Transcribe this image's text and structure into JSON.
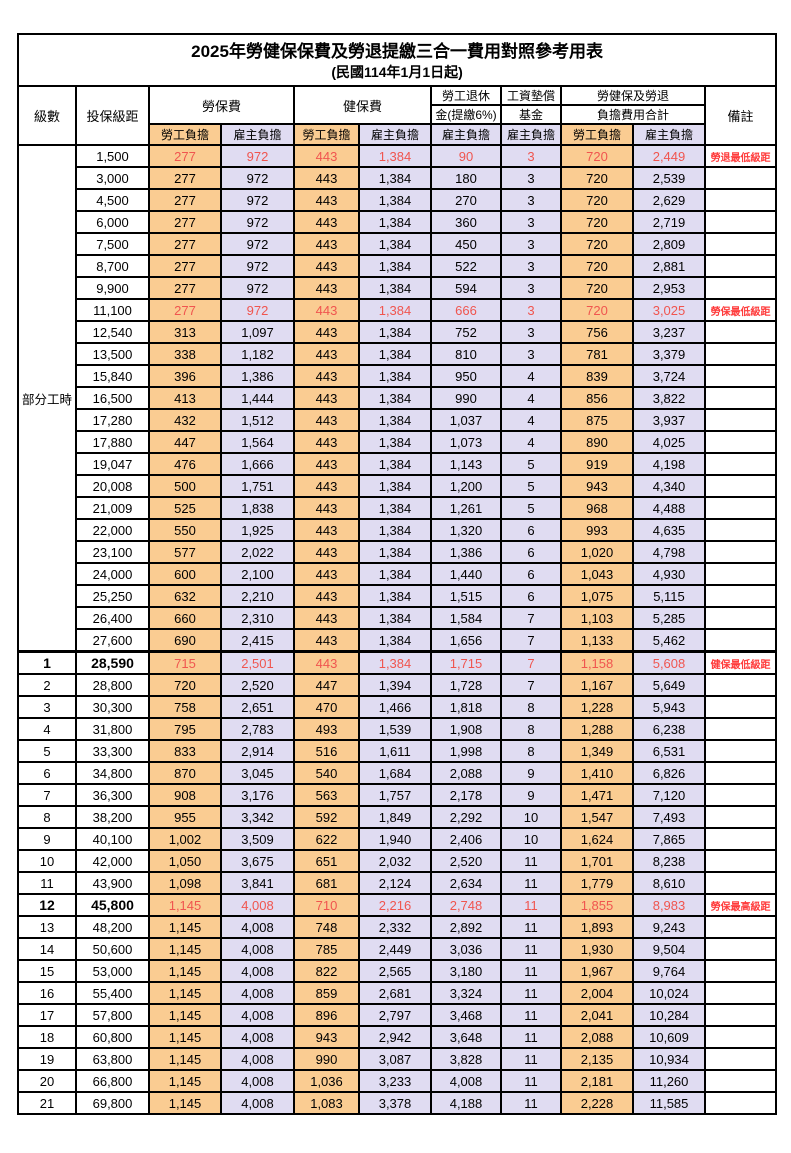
{
  "title": "2025年勞健保保費及勞退提繳三合一費用對照參考用表",
  "subtitle": "(民國114年1月1日起)",
  "colors": {
    "employee_bg": "#FACC92",
    "employer_bg": "#E0DCF2",
    "highlight_value_red": "#F0554F",
    "remark_red": "#FF3B3B",
    "border": "#000000"
  },
  "header": {
    "level": "級數",
    "bracket": "投保級距",
    "labor_fee": "勞保費",
    "health_fee": "健保費",
    "pension_line1": "勞工退休",
    "pension_line2": "金(提繳6%)",
    "wage_fund_line1": "工資墊償",
    "wage_fund_line2": "基金",
    "total_line1": "勞健保及勞退",
    "total_line2": "負擔費用合計",
    "remark": "備註",
    "employee_share": "勞工負擔",
    "employer_share": "雇主負擔"
  },
  "group": {
    "label": "部分工時",
    "rowspan": 23
  },
  "rows": [
    {
      "level": "",
      "bracket": "1,500",
      "v": [
        "277",
        "972",
        "443",
        "1,384",
        "90",
        "3",
        "720",
        "2,449"
      ],
      "remark": "勞退最低級距",
      "red": true
    },
    {
      "level": "",
      "bracket": "3,000",
      "v": [
        "277",
        "972",
        "443",
        "1,384",
        "180",
        "3",
        "720",
        "2,539"
      ],
      "remark": ""
    },
    {
      "level": "",
      "bracket": "4,500",
      "v": [
        "277",
        "972",
        "443",
        "1,384",
        "270",
        "3",
        "720",
        "2,629"
      ],
      "remark": ""
    },
    {
      "level": "",
      "bracket": "6,000",
      "v": [
        "277",
        "972",
        "443",
        "1,384",
        "360",
        "3",
        "720",
        "2,719"
      ],
      "remark": ""
    },
    {
      "level": "",
      "bracket": "7,500",
      "v": [
        "277",
        "972",
        "443",
        "1,384",
        "450",
        "3",
        "720",
        "2,809"
      ],
      "remark": ""
    },
    {
      "level": "",
      "bracket": "8,700",
      "v": [
        "277",
        "972",
        "443",
        "1,384",
        "522",
        "3",
        "720",
        "2,881"
      ],
      "remark": ""
    },
    {
      "level": "",
      "bracket": "9,900",
      "v": [
        "277",
        "972",
        "443",
        "1,384",
        "594",
        "3",
        "720",
        "2,953"
      ],
      "remark": ""
    },
    {
      "level": "",
      "bracket": "11,100",
      "v": [
        "277",
        "972",
        "443",
        "1,384",
        "666",
        "3",
        "720",
        "3,025"
      ],
      "remark": "勞保最低級距",
      "red": true
    },
    {
      "level": "",
      "bracket": "12,540",
      "v": [
        "313",
        "1,097",
        "443",
        "1,384",
        "752",
        "3",
        "756",
        "3,237"
      ],
      "remark": ""
    },
    {
      "level": "",
      "bracket": "13,500",
      "v": [
        "338",
        "1,182",
        "443",
        "1,384",
        "810",
        "3",
        "781",
        "3,379"
      ],
      "remark": ""
    },
    {
      "level": "",
      "bracket": "15,840",
      "v": [
        "396",
        "1,386",
        "443",
        "1,384",
        "950",
        "4",
        "839",
        "3,724"
      ],
      "remark": ""
    },
    {
      "level": "",
      "bracket": "16,500",
      "v": [
        "413",
        "1,444",
        "443",
        "1,384",
        "990",
        "4",
        "856",
        "3,822"
      ],
      "remark": ""
    },
    {
      "level": "",
      "bracket": "17,280",
      "v": [
        "432",
        "1,512",
        "443",
        "1,384",
        "1,037",
        "4",
        "875",
        "3,937"
      ],
      "remark": ""
    },
    {
      "level": "",
      "bracket": "17,880",
      "v": [
        "447",
        "1,564",
        "443",
        "1,384",
        "1,073",
        "4",
        "890",
        "4,025"
      ],
      "remark": ""
    },
    {
      "level": "",
      "bracket": "19,047",
      "v": [
        "476",
        "1,666",
        "443",
        "1,384",
        "1,143",
        "5",
        "919",
        "4,198"
      ],
      "remark": ""
    },
    {
      "level": "",
      "bracket": "20,008",
      "v": [
        "500",
        "1,751",
        "443",
        "1,384",
        "1,200",
        "5",
        "943",
        "4,340"
      ],
      "remark": ""
    },
    {
      "level": "",
      "bracket": "21,009",
      "v": [
        "525",
        "1,838",
        "443",
        "1,384",
        "1,261",
        "5",
        "968",
        "4,488"
      ],
      "remark": ""
    },
    {
      "level": "",
      "bracket": "22,000",
      "v": [
        "550",
        "1,925",
        "443",
        "1,384",
        "1,320",
        "6",
        "993",
        "4,635"
      ],
      "remark": ""
    },
    {
      "level": "",
      "bracket": "23,100",
      "v": [
        "577",
        "2,022",
        "443",
        "1,384",
        "1,386",
        "6",
        "1,020",
        "4,798"
      ],
      "remark": ""
    },
    {
      "level": "",
      "bracket": "24,000",
      "v": [
        "600",
        "2,100",
        "443",
        "1,384",
        "1,440",
        "6",
        "1,043",
        "4,930"
      ],
      "remark": ""
    },
    {
      "level": "",
      "bracket": "25,250",
      "v": [
        "632",
        "2,210",
        "443",
        "1,384",
        "1,515",
        "6",
        "1,075",
        "5,115"
      ],
      "remark": ""
    },
    {
      "level": "",
      "bracket": "26,400",
      "v": [
        "660",
        "2,310",
        "443",
        "1,384",
        "1,584",
        "7",
        "1,103",
        "5,285"
      ],
      "remark": ""
    },
    {
      "level": "",
      "bracket": "27,600",
      "v": [
        "690",
        "2,415",
        "443",
        "1,384",
        "1,656",
        "7",
        "1,133",
        "5,462"
      ],
      "remark": ""
    },
    {
      "level": "1",
      "bracket": "28,590",
      "v": [
        "715",
        "2,501",
        "443",
        "1,384",
        "1,715",
        "7",
        "1,158",
        "5,608"
      ],
      "remark": "健保最低級距",
      "red": true,
      "bold": true,
      "sep": true
    },
    {
      "level": "2",
      "bracket": "28,800",
      "v": [
        "720",
        "2,520",
        "447",
        "1,394",
        "1,728",
        "7",
        "1,167",
        "5,649"
      ],
      "remark": ""
    },
    {
      "level": "3",
      "bracket": "30,300",
      "v": [
        "758",
        "2,651",
        "470",
        "1,466",
        "1,818",
        "8",
        "1,228",
        "5,943"
      ],
      "remark": ""
    },
    {
      "level": "4",
      "bracket": "31,800",
      "v": [
        "795",
        "2,783",
        "493",
        "1,539",
        "1,908",
        "8",
        "1,288",
        "6,238"
      ],
      "remark": ""
    },
    {
      "level": "5",
      "bracket": "33,300",
      "v": [
        "833",
        "2,914",
        "516",
        "1,611",
        "1,998",
        "8",
        "1,349",
        "6,531"
      ],
      "remark": ""
    },
    {
      "level": "6",
      "bracket": "34,800",
      "v": [
        "870",
        "3,045",
        "540",
        "1,684",
        "2,088",
        "9",
        "1,410",
        "6,826"
      ],
      "remark": ""
    },
    {
      "level": "7",
      "bracket": "36,300",
      "v": [
        "908",
        "3,176",
        "563",
        "1,757",
        "2,178",
        "9",
        "1,471",
        "7,120"
      ],
      "remark": ""
    },
    {
      "level": "8",
      "bracket": "38,200",
      "v": [
        "955",
        "3,342",
        "592",
        "1,849",
        "2,292",
        "10",
        "1,547",
        "7,493"
      ],
      "remark": ""
    },
    {
      "level": "9",
      "bracket": "40,100",
      "v": [
        "1,002",
        "3,509",
        "622",
        "1,940",
        "2,406",
        "10",
        "1,624",
        "7,865"
      ],
      "remark": ""
    },
    {
      "level": "10",
      "bracket": "42,000",
      "v": [
        "1,050",
        "3,675",
        "651",
        "2,032",
        "2,520",
        "11",
        "1,701",
        "8,238"
      ],
      "remark": ""
    },
    {
      "level": "11",
      "bracket": "43,900",
      "v": [
        "1,098",
        "3,841",
        "681",
        "2,124",
        "2,634",
        "11",
        "1,779",
        "8,610"
      ],
      "remark": ""
    },
    {
      "level": "12",
      "bracket": "45,800",
      "v": [
        "1,145",
        "4,008",
        "710",
        "2,216",
        "2,748",
        "11",
        "1,855",
        "8,983"
      ],
      "remark": "勞保最高級距",
      "red": true,
      "bold": true
    },
    {
      "level": "13",
      "bracket": "48,200",
      "v": [
        "1,145",
        "4,008",
        "748",
        "2,332",
        "2,892",
        "11",
        "1,893",
        "9,243"
      ],
      "remark": ""
    },
    {
      "level": "14",
      "bracket": "50,600",
      "v": [
        "1,145",
        "4,008",
        "785",
        "2,449",
        "3,036",
        "11",
        "1,930",
        "9,504"
      ],
      "remark": ""
    },
    {
      "level": "15",
      "bracket": "53,000",
      "v": [
        "1,145",
        "4,008",
        "822",
        "2,565",
        "3,180",
        "11",
        "1,967",
        "9,764"
      ],
      "remark": ""
    },
    {
      "level": "16",
      "bracket": "55,400",
      "v": [
        "1,145",
        "4,008",
        "859",
        "2,681",
        "3,324",
        "11",
        "2,004",
        "10,024"
      ],
      "remark": ""
    },
    {
      "level": "17",
      "bracket": "57,800",
      "v": [
        "1,145",
        "4,008",
        "896",
        "2,797",
        "3,468",
        "11",
        "2,041",
        "10,284"
      ],
      "remark": ""
    },
    {
      "level": "18",
      "bracket": "60,800",
      "v": [
        "1,145",
        "4,008",
        "943",
        "2,942",
        "3,648",
        "11",
        "2,088",
        "10,609"
      ],
      "remark": ""
    },
    {
      "level": "19",
      "bracket": "63,800",
      "v": [
        "1,145",
        "4,008",
        "990",
        "3,087",
        "3,828",
        "11",
        "2,135",
        "10,934"
      ],
      "remark": ""
    },
    {
      "level": "20",
      "bracket": "66,800",
      "v": [
        "1,145",
        "4,008",
        "1,036",
        "3,233",
        "4,008",
        "11",
        "2,181",
        "11,260"
      ],
      "remark": ""
    },
    {
      "level": "21",
      "bracket": "69,800",
      "v": [
        "1,145",
        "4,008",
        "1,083",
        "3,378",
        "4,188",
        "11",
        "2,228",
        "11,585"
      ],
      "remark": ""
    }
  ],
  "column_share_types": [
    "emp",
    "er",
    "emp",
    "er",
    "er",
    "er",
    "emp",
    "er"
  ]
}
